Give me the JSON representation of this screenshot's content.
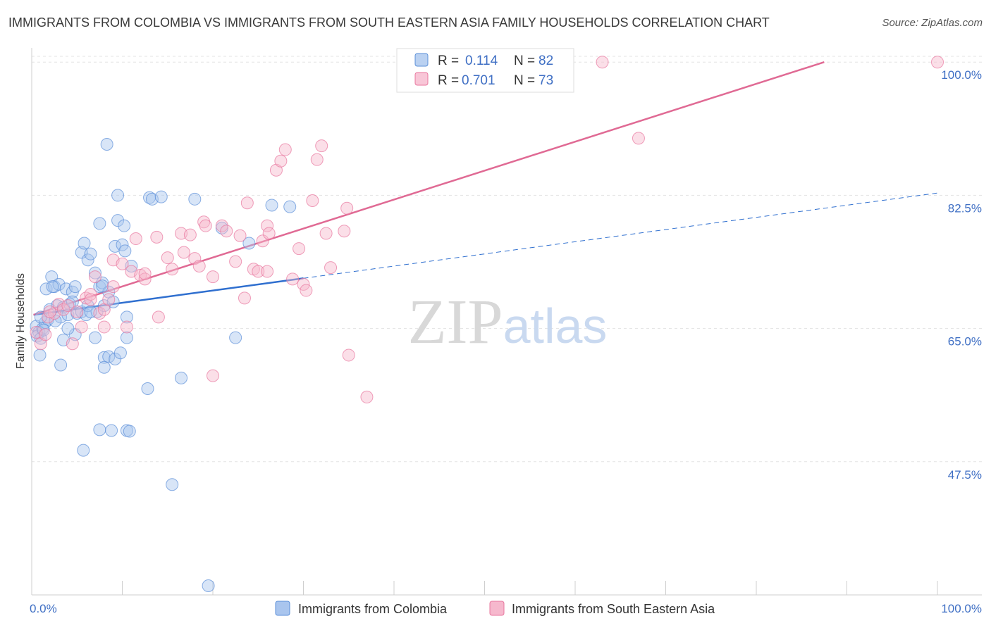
{
  "chart_data": {
    "type": "scatter",
    "title": "IMMIGRANTS FROM COLOMBIA VS IMMIGRANTS FROM SOUTH EASTERN ASIA FAMILY HOUSEHOLDS CORRELATION CHART",
    "source": "Source: ZipAtlas.com",
    "ylabel": "Family Households",
    "xlabel": "",
    "xlim": [
      0,
      100
    ],
    "ylim": [
      30,
      101.5
    ],
    "x_tick_labels": [
      "0.0%",
      "100.0%"
    ],
    "y_ticks": [
      {
        "value": 100,
        "label": "100.0%"
      },
      {
        "value": 82.5,
        "label": "82.5%"
      },
      {
        "value": 65,
        "label": "65.0%"
      },
      {
        "value": 47.5,
        "label": "47.5%"
      }
    ],
    "grid": true,
    "legend": {
      "placement": "top-center",
      "rows": [
        {
          "r_label": "R =",
          "r_value": "0.114",
          "n_label": "N =",
          "n_value": "82"
        },
        {
          "r_label": "R =",
          "r_value": "0.701",
          "n_label": "N =",
          "n_value": "73"
        }
      ]
    },
    "watermark": "ZIPatlas",
    "series": [
      {
        "name": "Immigrants from Colombia",
        "color": "#5b8fd8",
        "fill": "#a9c5ee",
        "trend": {
          "solid_x": [
            0.2,
            30
          ],
          "dash_x": [
            30,
            100
          ],
          "y0": 66.8,
          "y_at_30": 71.6,
          "slope": 0.16
        },
        "points": [
          [
            0.5,
            65.3
          ],
          [
            0.8,
            64.5
          ],
          [
            0.6,
            64.0
          ],
          [
            1.0,
            63.7
          ],
          [
            1.2,
            65.0
          ],
          [
            0.9,
            61.5
          ],
          [
            1.5,
            65.8
          ],
          [
            1.8,
            66.2
          ],
          [
            2.0,
            67.5
          ],
          [
            1.6,
            70.2
          ],
          [
            2.2,
            71.8
          ],
          [
            2.5,
            70.5
          ],
          [
            3.0,
            70.8
          ],
          [
            2.8,
            68.0
          ],
          [
            3.2,
            66.5
          ],
          [
            3.5,
            67.8
          ],
          [
            3.8,
            70.2
          ],
          [
            4.0,
            66.8
          ],
          [
            4.2,
            68.2
          ],
          [
            4.5,
            69.8
          ],
          [
            4.8,
            70.5
          ],
          [
            5.0,
            67.0
          ],
          [
            5.5,
            67.2
          ],
          [
            6.0,
            66.8
          ],
          [
            6.2,
            68.0
          ],
          [
            5.5,
            75.0
          ],
          [
            5.8,
            76.2
          ],
          [
            6.2,
            74.0
          ],
          [
            6.5,
            74.8
          ],
          [
            7.0,
            72.3
          ],
          [
            7.5,
            70.5
          ],
          [
            7.8,
            71.0
          ],
          [
            7.2,
            67.2
          ],
          [
            8.0,
            68.0
          ],
          [
            8.5,
            69.8
          ],
          [
            9.0,
            68.5
          ],
          [
            9.2,
            75.8
          ],
          [
            10.0,
            76.0
          ],
          [
            10.3,
            75.2
          ],
          [
            11.0,
            73.2
          ],
          [
            9.5,
            79.2
          ],
          [
            10.2,
            78.5
          ],
          [
            7.5,
            78.8
          ],
          [
            9.5,
            82.5
          ],
          [
            13.0,
            82.2
          ],
          [
            13.3,
            82.0
          ],
          [
            14.3,
            82.3
          ],
          [
            8.3,
            89.2
          ],
          [
            18.0,
            82.0
          ],
          [
            26.5,
            81.2
          ],
          [
            28.5,
            81.0
          ],
          [
            21.0,
            78.2
          ],
          [
            24.0,
            76.2
          ],
          [
            10.5,
            66.5
          ],
          [
            10.5,
            63.8
          ],
          [
            7.0,
            63.8
          ],
          [
            4.8,
            64.2
          ],
          [
            3.5,
            63.5
          ],
          [
            3.2,
            60.2
          ],
          [
            8.0,
            61.2
          ],
          [
            8.5,
            61.3
          ],
          [
            9.2,
            61.0
          ],
          [
            9.8,
            61.8
          ],
          [
            8.0,
            59.9
          ],
          [
            12.8,
            57.1
          ],
          [
            16.5,
            58.5
          ],
          [
            22.5,
            63.8
          ],
          [
            7.5,
            51.7
          ],
          [
            8.8,
            51.6
          ],
          [
            10.5,
            51.6
          ],
          [
            10.8,
            51.5
          ],
          [
            5.7,
            49.0
          ],
          [
            15.5,
            44.5
          ],
          [
            19.5,
            31.2
          ],
          [
            2.6,
            66.0
          ],
          [
            4.0,
            65.0
          ],
          [
            1.0,
            66.5
          ],
          [
            6.5,
            67.2
          ],
          [
            7.8,
            70.6
          ],
          [
            2.3,
            70.5
          ],
          [
            4.5,
            68.5
          ],
          [
            1.3,
            64.8
          ]
        ]
      },
      {
        "name": "Immigrants from South Eastern Asia",
        "color": "#e8769e",
        "fill": "#f6b8cd",
        "trend": {
          "x": [
            0.2,
            87.5
          ],
          "y": [
            66.8,
            100.0
          ]
        },
        "points": [
          [
            0.5,
            64.5
          ],
          [
            1.0,
            63.0
          ],
          [
            1.5,
            64.2
          ],
          [
            1.8,
            66.5
          ],
          [
            2.5,
            67.0
          ],
          [
            3.0,
            68.2
          ],
          [
            3.5,
            67.5
          ],
          [
            4.0,
            68.0
          ],
          [
            5.0,
            67.2
          ],
          [
            5.5,
            65.2
          ],
          [
            6.0,
            69.0
          ],
          [
            6.5,
            69.5
          ],
          [
            7.0,
            71.8
          ],
          [
            7.5,
            67.0
          ],
          [
            8.0,
            67.5
          ],
          [
            8.5,
            68.8
          ],
          [
            9.0,
            74.0
          ],
          [
            10.0,
            73.5
          ],
          [
            11.0,
            72.5
          ],
          [
            12.0,
            72.0
          ],
          [
            12.5,
            71.5
          ],
          [
            11.5,
            76.8
          ],
          [
            13.8,
            77.0
          ],
          [
            15.0,
            74.3
          ],
          [
            15.5,
            72.8
          ],
          [
            16.5,
            77.5
          ],
          [
            17.5,
            77.3
          ],
          [
            16.8,
            75.0
          ],
          [
            18.0,
            74.2
          ],
          [
            19.0,
            79.0
          ],
          [
            19.2,
            78.5
          ],
          [
            20.0,
            71.8
          ],
          [
            21.0,
            78.5
          ],
          [
            21.5,
            77.8
          ],
          [
            22.5,
            73.8
          ],
          [
            23.0,
            77.2
          ],
          [
            23.5,
            69.0
          ],
          [
            23.8,
            81.5
          ],
          [
            24.5,
            72.8
          ],
          [
            25.0,
            72.5
          ],
          [
            25.5,
            76.5
          ],
          [
            26.0,
            78.5
          ],
          [
            26.2,
            77.5
          ],
          [
            27.0,
            85.8
          ],
          [
            27.5,
            87.0
          ],
          [
            28.0,
            88.5
          ],
          [
            28.8,
            71.5
          ],
          [
            29.5,
            75.5
          ],
          [
            30.0,
            70.8
          ],
          [
            30.3,
            70.0
          ],
          [
            31.0,
            81.8
          ],
          [
            31.5,
            87.2
          ],
          [
            32.0,
            89.0
          ],
          [
            32.5,
            77.5
          ],
          [
            33.0,
            73.0
          ],
          [
            34.5,
            77.8
          ],
          [
            34.8,
            80.8
          ],
          [
            35.0,
            61.5
          ],
          [
            37.0,
            56.0
          ],
          [
            67.0,
            90.0
          ],
          [
            63.0,
            100.0
          ],
          [
            100.0,
            100.0
          ],
          [
            14.0,
            66.5
          ],
          [
            8.0,
            65.2
          ],
          [
            10.5,
            65.2
          ],
          [
            20.0,
            58.8
          ],
          [
            4.5,
            63.0
          ],
          [
            12.5,
            72.2
          ],
          [
            18.5,
            73.2
          ],
          [
            26.0,
            72.5
          ],
          [
            6.5,
            68.8
          ],
          [
            9.0,
            70.5
          ],
          [
            2.0,
            67.2
          ]
        ]
      }
    ]
  },
  "legend_bottom": {
    "items": [
      {
        "label": "Immigrants from Colombia"
      },
      {
        "label": "Immigrants from South Eastern Asia"
      }
    ]
  }
}
